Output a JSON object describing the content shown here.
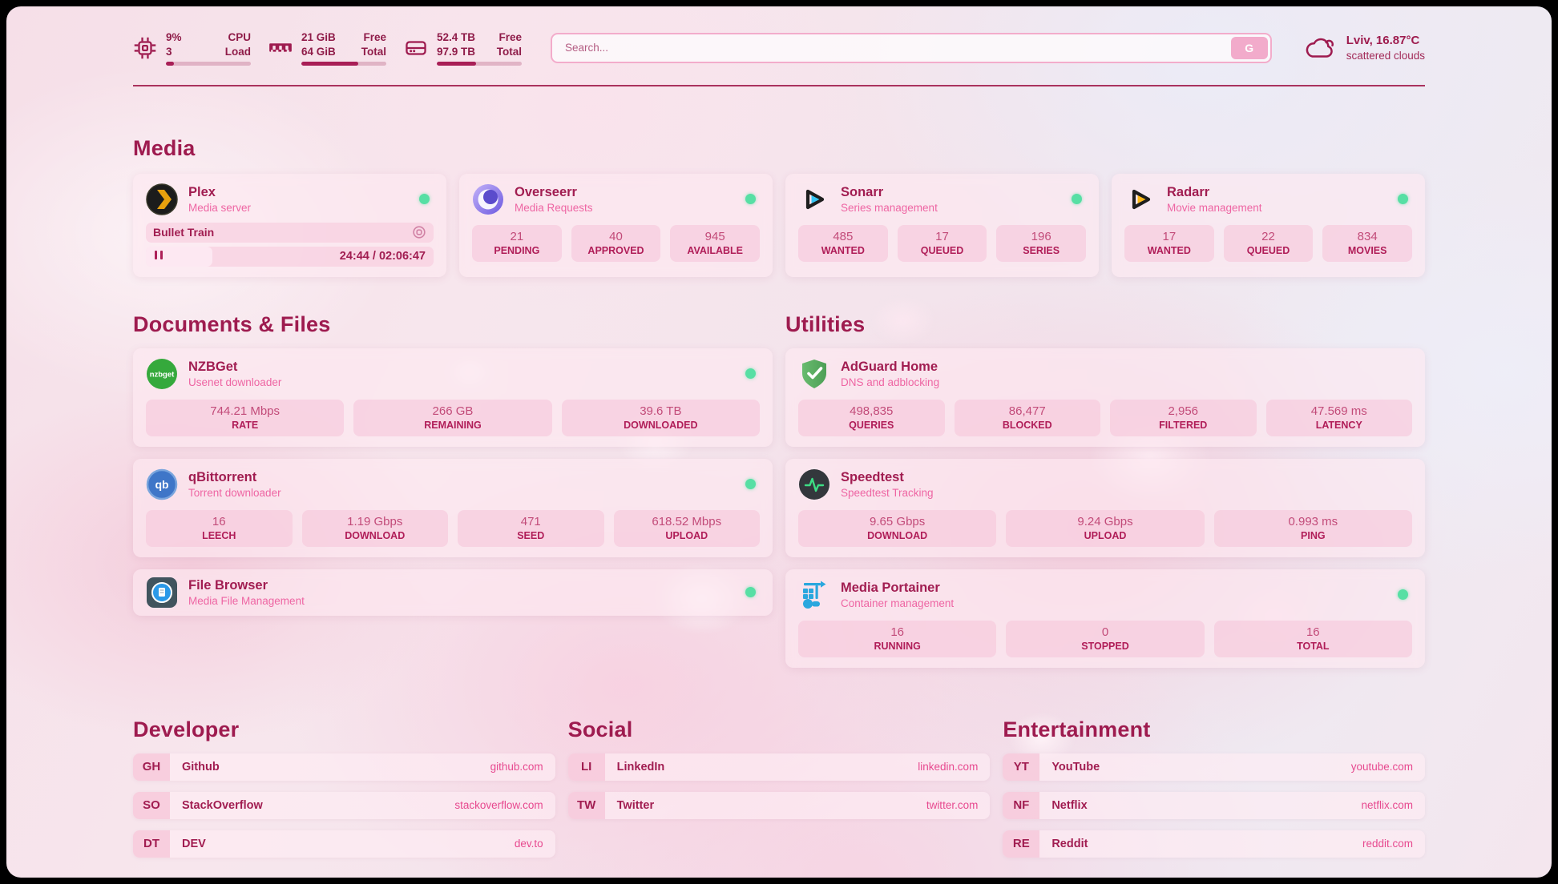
{
  "header": {
    "cpu": {
      "top_value": "9%",
      "top_label": "CPU",
      "bottom_value": "3",
      "bottom_label": "Load",
      "progress_pct": 9
    },
    "memory": {
      "top_value": "21 GiB",
      "top_label": "Free",
      "bottom_value": "64 GiB",
      "bottom_label": "Total",
      "progress_pct": 67
    },
    "storage": {
      "top_value": "52.4 TB",
      "top_label": "Free",
      "bottom_value": "97.9 TB",
      "bottom_label": "Total",
      "progress_pct": 46
    },
    "search": {
      "placeholder": "Search...",
      "button_label": "G"
    },
    "weather": {
      "location_temp": "Lviv, 16.87°C",
      "condition": "scattered clouds"
    }
  },
  "media": {
    "title": "Media",
    "plex": {
      "name": "Plex",
      "subtitle": "Media server",
      "status": "online",
      "player": {
        "title": "Bullet Train",
        "time": "24:44 / 02:06:47",
        "progress_pct": 20
      }
    },
    "overseerr": {
      "name": "Overseerr",
      "subtitle": "Media Requests",
      "status": "online",
      "stats": [
        {
          "value": "21",
          "label": "PENDING"
        },
        {
          "value": "40",
          "label": "APPROVED"
        },
        {
          "value": "945",
          "label": "AVAILABLE"
        }
      ]
    },
    "sonarr": {
      "name": "Sonarr",
      "subtitle": "Series management",
      "status": "online",
      "stats": [
        {
          "value": "485",
          "label": "WANTED"
        },
        {
          "value": "17",
          "label": "QUEUED"
        },
        {
          "value": "196",
          "label": "SERIES"
        }
      ]
    },
    "radarr": {
      "name": "Radarr",
      "subtitle": "Movie management",
      "status": "online",
      "stats": [
        {
          "value": "17",
          "label": "WANTED"
        },
        {
          "value": "22",
          "label": "QUEUED"
        },
        {
          "value": "834",
          "label": "MOVIES"
        }
      ]
    }
  },
  "documents": {
    "title": "Documents & Files",
    "nzbget": {
      "name": "NZBGet",
      "subtitle": "Usenet downloader",
      "status": "online",
      "icon_text": "nzbget",
      "stats": [
        {
          "value": "744.21 Mbps",
          "label": "RATE"
        },
        {
          "value": "266 GB",
          "label": "REMAINING"
        },
        {
          "value": "39.6 TB",
          "label": "DOWNLOADED"
        }
      ]
    },
    "qbittorrent": {
      "name": "qBittorrent",
      "subtitle": "Torrent downloader",
      "status": "online",
      "icon_text": "qb",
      "stats": [
        {
          "value": "16",
          "label": "LEECH"
        },
        {
          "value": "1.19 Gbps",
          "label": "DOWNLOAD"
        },
        {
          "value": "471",
          "label": "SEED"
        },
        {
          "value": "618.52 Mbps",
          "label": "UPLOAD"
        }
      ]
    },
    "filebrowser": {
      "name": "File Browser",
      "subtitle": "Media File Management",
      "status": "online"
    }
  },
  "utilities": {
    "title": "Utilities",
    "adguard": {
      "name": "AdGuard Home",
      "subtitle": "DNS and adblocking",
      "stats": [
        {
          "value": "498,835",
          "label": "QUERIES"
        },
        {
          "value": "86,477",
          "label": "BLOCKED"
        },
        {
          "value": "2,956",
          "label": "FILTERED"
        },
        {
          "value": "47.569 ms",
          "label": "LATENCY"
        }
      ]
    },
    "speedtest": {
      "name": "Speedtest",
      "subtitle": "Speedtest Tracking",
      "stats": [
        {
          "value": "9.65 Gbps",
          "label": "DOWNLOAD"
        },
        {
          "value": "9.24 Gbps",
          "label": "UPLOAD"
        },
        {
          "value": "0.993 ms",
          "label": "PING"
        }
      ]
    },
    "portainer": {
      "name": "Media Portainer",
      "subtitle": "Container management",
      "status": "online",
      "stats": [
        {
          "value": "16",
          "label": "RUNNING"
        },
        {
          "value": "0",
          "label": "STOPPED"
        },
        {
          "value": "16",
          "label": "TOTAL"
        }
      ]
    }
  },
  "bookmarks": {
    "developer": {
      "title": "Developer",
      "links": [
        {
          "abbr": "GH",
          "name": "Github",
          "url": "github.com"
        },
        {
          "abbr": "SO",
          "name": "StackOverflow",
          "url": "stackoverflow.com"
        },
        {
          "abbr": "DT",
          "name": "DEV",
          "url": "dev.to"
        }
      ]
    },
    "social": {
      "title": "Social",
      "links": [
        {
          "abbr": "LI",
          "name": "LinkedIn",
          "url": "linkedin.com"
        },
        {
          "abbr": "TW",
          "name": "Twitter",
          "url": "twitter.com"
        }
      ]
    },
    "entertainment": {
      "title": "Entertainment",
      "links": [
        {
          "abbr": "YT",
          "name": "YouTube",
          "url": "youtube.com"
        },
        {
          "abbr": "NF",
          "name": "Netflix",
          "url": "netflix.com"
        },
        {
          "abbr": "RE",
          "name": "Reddit",
          "url": "reddit.com"
        }
      ]
    }
  },
  "icons": {
    "cpu": "cpu-chip-icon",
    "memory": "ram-icon",
    "storage": "hard-drive-icon",
    "weather": "cloud-icon",
    "session": "record-icon",
    "pause": "pause-icon",
    "status": "online-dot"
  },
  "colors": {
    "primary": "#9e1b4f",
    "subtitle_pink": "#ee65a3",
    "link_pink": "#e7498f",
    "online_green": "#57dfa4",
    "bar_fill": "#a81e56",
    "search_button": "#f2abcb"
  }
}
